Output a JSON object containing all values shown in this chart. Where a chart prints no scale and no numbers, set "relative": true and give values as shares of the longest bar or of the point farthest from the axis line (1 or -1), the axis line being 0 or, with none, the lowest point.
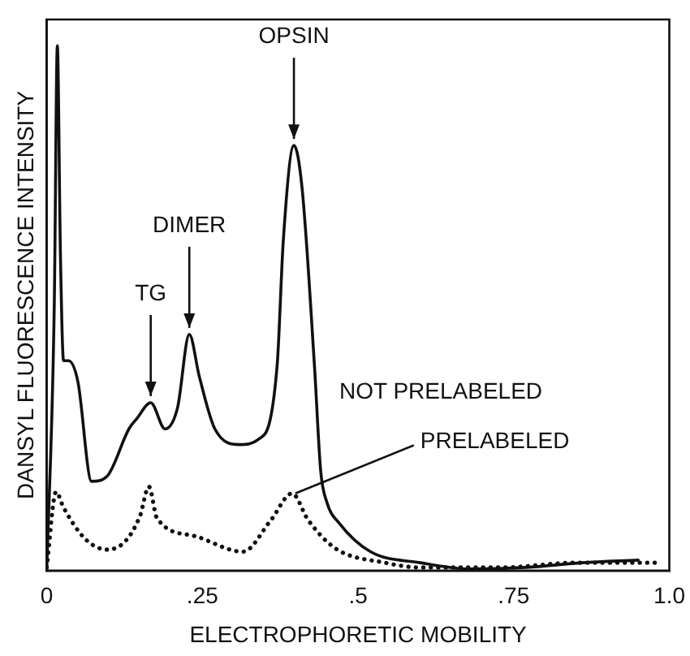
{
  "chart_data": {
    "type": "line",
    "relative": true,
    "xlabel": "ELECTROPHORETIC MOBILITY",
    "ylabel": "DANSYL FLUORESCENCE INTENSITY",
    "xlim": [
      0,
      1
    ],
    "xticks": [
      0,
      {
        "value": 0.25,
        "label": ".25"
      },
      {
        "value": 0.5,
        "label": ".5"
      },
      {
        "value": 0.75,
        "label": ".75"
      },
      {
        "value": 1,
        "label": "1.0"
      }
    ],
    "grid": false,
    "legend": false,
    "marker": "none",
    "annotations": [
      {
        "text": "OPSIN",
        "x": 0.397,
        "y": 0.81
      },
      {
        "text": "DIMER",
        "x": 0.229,
        "y": 0.45
      },
      {
        "text": "TG",
        "x": 0.167,
        "y": 0.32
      }
    ],
    "series": [
      {
        "name": "NOT PRELABELED",
        "color": "#111111",
        "line_style": "solid",
        "x": [
          0,
          0.012,
          0.017,
          0.022,
          0.027,
          0.035,
          0.05,
          0.072,
          0.097,
          0.132,
          0.145,
          0.167,
          0.19,
          0.21,
          0.229,
          0.245,
          0.27,
          0.31,
          0.34,
          0.37,
          0.38,
          0.397,
          0.41,
          0.43,
          0.44,
          0.45,
          0.47,
          0.52,
          0.6,
          0.68,
          0.77,
          0.86,
          0.95
        ],
        "values": [
          0,
          0.5,
          1,
          0.6,
          0.4,
          0.4,
          0.36,
          0.17,
          0.18,
          0.27,
          0.29,
          0.32,
          0.27,
          0.31,
          0.45,
          0.37,
          0.27,
          0.24,
          0.25,
          0.39,
          0.63,
          0.81,
          0.73,
          0.39,
          0.19,
          0.13,
          0.09,
          0.036,
          0.015,
          0.003,
          0.006,
          0.015,
          0.02
        ]
      },
      {
        "name": "PRELABELED",
        "color": "#111111",
        "line_style": "dotted",
        "x": [
          0,
          0.015,
          0.027,
          0.062,
          0.097,
          0.127,
          0.15,
          0.164,
          0.177,
          0.237,
          0.315,
          0.36,
          0.394,
          0.42,
          0.464,
          0.543,
          0.6,
          0.73,
          0.85,
          0.98
        ],
        "values": [
          0.006,
          0.15,
          0.12,
          0.06,
          0.04,
          0.057,
          0.105,
          0.16,
          0.1,
          0.066,
          0.036,
          0.096,
          0.147,
          0.096,
          0.042,
          0.015,
          0.006,
          0.006,
          0.015,
          0.015
        ]
      }
    ]
  }
}
